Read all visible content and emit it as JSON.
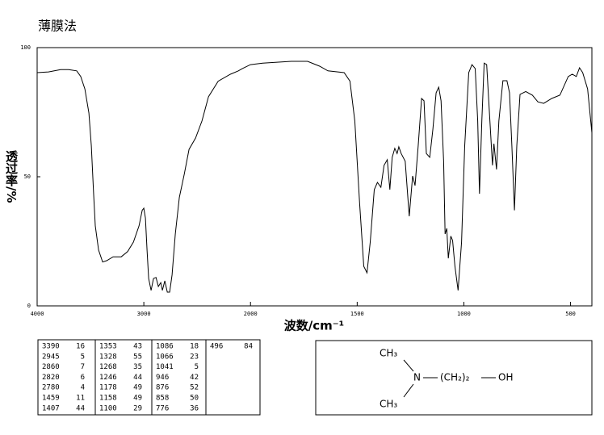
{
  "title": "薄膜法",
  "chart_data": {
    "type": "line",
    "xlabel": "波数/cm⁻¹",
    "ylabel": "透过率/%",
    "color": "#000000",
    "x_scale_change_at": 2000,
    "xlim": [
      4000,
      400
    ],
    "ylim": [
      0,
      100
    ],
    "xticks": [
      4000,
      3000,
      2000,
      1500,
      1000,
      500
    ],
    "yticks": [
      0,
      50,
      100
    ],
    "x": [
      4000,
      3894,
      3780,
      3705,
      3629,
      3591,
      3553,
      3515,
      3492,
      3470,
      3455,
      3424,
      3386,
      3348,
      3288,
      3212,
      3152,
      3098,
      3045,
      3015,
      3000,
      2985,
      2970,
      2955,
      2932,
      2909,
      2886,
      2864,
      2841,
      2826,
      2803,
      2780,
      2758,
      2735,
      2705,
      2667,
      2621,
      2576,
      2515,
      2455,
      2394,
      2303,
      2189,
      2114,
      2076,
      2000,
      1943,
      1809,
      1733,
      1676,
      1637,
      1561,
      1534,
      1511,
      1489,
      1469,
      1454,
      1439,
      1420,
      1405,
      1389,
      1374,
      1359,
      1347,
      1336,
      1324,
      1313,
      1305,
      1294,
      1275,
      1256,
      1240,
      1229,
      1214,
      1198,
      1187,
      1176,
      1160,
      1145,
      1130,
      1118,
      1107,
      1095,
      1088,
      1080,
      1073,
      1061,
      1053,
      1042,
      1027,
      1011,
      996,
      977,
      962,
      947,
      935,
      927,
      916,
      905,
      893,
      878,
      866,
      859,
      847,
      836,
      817,
      798,
      786,
      775,
      763,
      752,
      737,
      710,
      679,
      653,
      626,
      588,
      550,
      511,
      492,
      473,
      458,
      443,
      420,
      400
    ],
    "values": [
      90.3,
      90.6,
      91.5,
      91.5,
      91,
      88.8,
      84,
      74.7,
      62,
      43,
      31,
      21.6,
      17,
      17.5,
      19,
      19,
      21,
      24.7,
      31,
      37,
      37.8,
      34,
      21.6,
      10.6,
      6,
      10.6,
      11,
      7.5,
      9,
      6,
      9.7,
      5.3,
      5.3,
      12,
      27.8,
      42,
      51,
      60.6,
      65,
      71.6,
      81,
      87,
      89.7,
      91,
      91.9,
      93.4,
      94,
      94.7,
      94.7,
      92.8,
      91,
      90.3,
      87,
      71.6,
      40,
      15.3,
      12.8,
      24.7,
      45,
      47.8,
      45.9,
      54.4,
      56.6,
      45,
      57.5,
      61,
      59,
      61.6,
      59,
      56,
      34.7,
      50.3,
      46.6,
      62,
      80.3,
      79.4,
      59,
      57.5,
      68.4,
      82.5,
      84.7,
      79.4,
      56,
      27.8,
      30,
      18.4,
      27,
      25.3,
      15.3,
      6,
      24.7,
      62,
      90.3,
      93.4,
      91.9,
      71.6,
      43.4,
      71.6,
      94,
      93.4,
      71.6,
      54.4,
      62.8,
      52.8,
      71.6,
      87.2,
      87.2,
      82.5,
      62,
      37,
      62,
      81.9,
      83,
      81.6,
      79,
      78.4,
      80.3,
      81.6,
      88.8,
      89.7,
      88.8,
      92.2,
      90.3,
      84,
      67
    ]
  },
  "peak_table": [
    [
      [
        "3390",
        "16"
      ],
      [
        "2945",
        "5"
      ],
      [
        "2860",
        "7"
      ],
      [
        "2820",
        "6"
      ],
      [
        "2780",
        "4"
      ],
      [
        "1459",
        "11"
      ],
      [
        "1407",
        "44"
      ]
    ],
    [
      [
        "1353",
        "43"
      ],
      [
        "1328",
        "55"
      ],
      [
        "1268",
        "35"
      ],
      [
        "1246",
        "44"
      ],
      [
        "1178",
        "49"
      ],
      [
        "1158",
        "49"
      ],
      [
        "1100",
        "29"
      ]
    ],
    [
      [
        "1086",
        "18"
      ],
      [
        "1066",
        "23"
      ],
      [
        "1041",
        "5"
      ],
      [
        "946",
        "42"
      ],
      [
        "876",
        "52"
      ],
      [
        "858",
        "50"
      ],
      [
        "776",
        "36"
      ]
    ],
    [
      [
        "496",
        "84"
      ]
    ]
  ],
  "structure": {
    "top_group": "CH₃",
    "atom": "N",
    "chain": "(CH₂)₂",
    "end_group": "OH",
    "bottom_group": "CH₃"
  }
}
